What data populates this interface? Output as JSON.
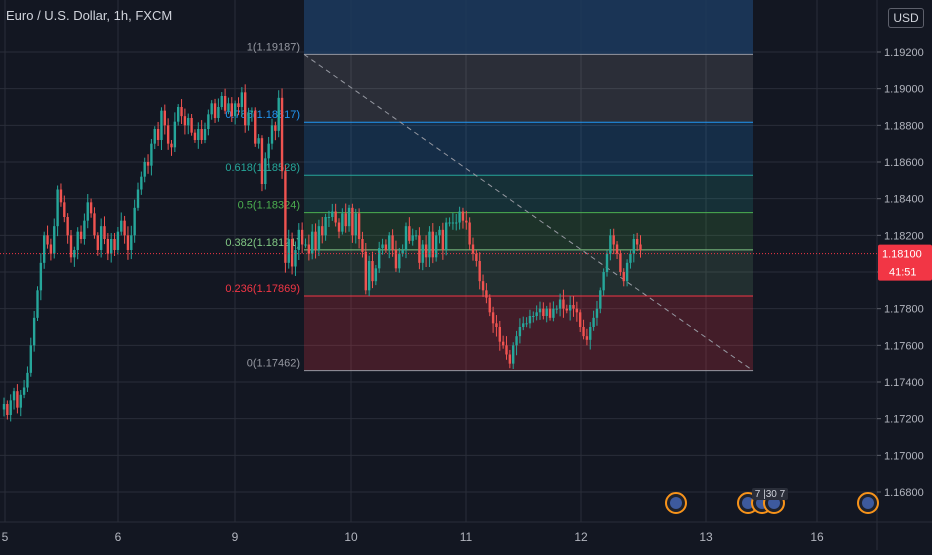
{
  "header": {
    "title": "Euro / U.S. Dollar, 1h, FXCM",
    "currency_button": "USD"
  },
  "price_axis": {
    "labels": [
      "1.19200",
      "1.19000",
      "1.18800",
      "1.18600",
      "1.18400",
      "1.18200",
      "1.18000",
      "1.17800",
      "1.17600",
      "1.17400",
      "1.17200",
      "1.17000",
      "1.16800"
    ],
    "current_price_label": "1.18100",
    "countdown_label": "41:51"
  },
  "time_axis": {
    "labels": [
      "5",
      "6",
      "9",
      "10",
      "11",
      "12",
      "13",
      "16"
    ]
  },
  "event_badges": {
    "grouped_label": "7 |30 7"
  },
  "fib_levels": [
    {
      "label": "1(1.19187)",
      "ratio": 1,
      "price": 1.19187,
      "color": "#9598a1",
      "band": "rgba(255,255,255,0.10)"
    },
    {
      "label": "0.786(1.18817)",
      "ratio": 0.786,
      "price": 1.18817,
      "color": "#2196f3",
      "band": "rgba(33,150,243,0.18)"
    },
    {
      "label": "0.618(1.18528)",
      "ratio": 0.618,
      "price": 1.18528,
      "color": "#26a69a",
      "band": "rgba(38,166,154,0.18)"
    },
    {
      "label": "0.5(1.18324)",
      "ratio": 0.5,
      "price": 1.18324,
      "color": "#4caf50",
      "band": "rgba(76,175,80,0.18)"
    },
    {
      "label": "0.382(1.18121)",
      "ratio": 0.382,
      "price": 1.18121,
      "color": "#81c784",
      "band": "rgba(129,199,132,0.14)"
    },
    {
      "label": "0.236(1.17869)",
      "ratio": 0.236,
      "price": 1.17869,
      "color": "#f23645",
      "band": "rgba(242,54,69,0.22)"
    },
    {
      "label": "0(1.17462)",
      "ratio": 0,
      "price": 1.17462,
      "color": "#9598a1",
      "band": ""
    }
  ],
  "colors": {
    "background": "#131722",
    "grid": "#2a2e39",
    "up": "#26a69a",
    "down": "#ef5350",
    "axis_text": "#b2b5be",
    "price_tag": "#f23645",
    "top_band": "#1c3a5e"
  },
  "chart_data": {
    "type": "candlestick",
    "symbol": "Euro / U.S. Dollar",
    "interval": "1h",
    "source": "FXCM",
    "ylim": [
      1.1665,
      1.1935
    ],
    "x_tick_labels": [
      "5",
      "6",
      "9",
      "10",
      "11",
      "12",
      "13",
      "16"
    ],
    "last_price": 1.181,
    "fibonacci_retracement": {
      "high": 1.19187,
      "low": 1.17462,
      "levels": [
        1,
        0.786,
        0.618,
        0.5,
        0.382,
        0.236,
        0
      ]
    },
    "approximate_closes": [
      1.1728,
      1.1722,
      1.173,
      1.1735,
      1.1726,
      1.1733,
      1.1737,
      1.1745,
      1.176,
      1.1775,
      1.179,
      1.1805,
      1.182,
      1.1815,
      1.181,
      1.1825,
      1.1845,
      1.1838,
      1.183,
      1.182,
      1.1808,
      1.1812,
      1.1822,
      1.1818,
      1.1828,
      1.1838,
      1.1832,
      1.182,
      1.1812,
      1.1825,
      1.1818,
      1.181,
      1.1818,
      1.1812,
      1.1822,
      1.1828,
      1.182,
      1.1812,
      1.182,
      1.1835,
      1.1845,
      1.1852,
      1.186,
      1.1858,
      1.187,
      1.1878,
      1.1872,
      1.1888,
      1.188,
      1.187,
      1.1868,
      1.1882,
      1.189,
      1.1885,
      1.188,
      1.1884,
      1.1876,
      1.1872,
      1.1878,
      1.1872,
      1.1878,
      1.1886,
      1.1892,
      1.1884,
      1.189,
      1.1896,
      1.1888,
      1.1892,
      1.1885,
      1.1892,
      1.189,
      1.1898,
      1.188,
      1.1887,
      1.1888,
      1.187,
      1.1873,
      1.1848,
      1.1862,
      1.187,
      1.188,
      1.1877,
      1.1895,
      1.1855,
      1.1805,
      1.1818,
      1.1803,
      1.1812,
      1.1823,
      1.1815,
      1.1815,
      1.181,
      1.1822,
      1.1812,
      1.1825,
      1.182,
      1.183,
      1.183,
      1.1833,
      1.1827,
      1.1822,
      1.1832,
      1.1825,
      1.1835,
      1.182,
      1.1832,
      1.1818,
      1.1811,
      1.179,
      1.1806,
      1.1795,
      1.1802,
      1.1813,
      1.1815,
      1.1812,
      1.182,
      1.1812,
      1.1802,
      1.181,
      1.1812,
      1.1825,
      1.1817,
      1.182,
      1.182,
      1.1805,
      1.1815,
      1.1808,
      1.1822,
      1.1808,
      1.182,
      1.1823,
      1.1812,
      1.1827,
      1.1827,
      1.1827,
      1.1827,
      1.1833,
      1.1828,
      1.1827,
      1.1815,
      1.181,
      1.1806,
      1.1795,
      1.179,
      1.1786,
      1.1778,
      1.1772,
      1.177,
      1.1762,
      1.176,
      1.1755,
      1.175,
      1.176,
      1.1765,
      1.177,
      1.1772,
      1.1772,
      1.1776,
      1.1776,
      1.1778,
      1.178,
      1.1776,
      1.178,
      1.1775,
      1.178,
      1.178,
      1.1785,
      1.178,
      1.1779,
      1.1782,
      1.178,
      1.1778,
      1.177,
      1.1765,
      1.1763,
      1.177,
      1.1775,
      1.178,
      1.179,
      1.18,
      1.181,
      1.182,
      1.1815,
      1.181,
      1.18,
      1.1795,
      1.1805,
      1.181,
      1.1818,
      1.1815,
      1.1812
    ]
  }
}
